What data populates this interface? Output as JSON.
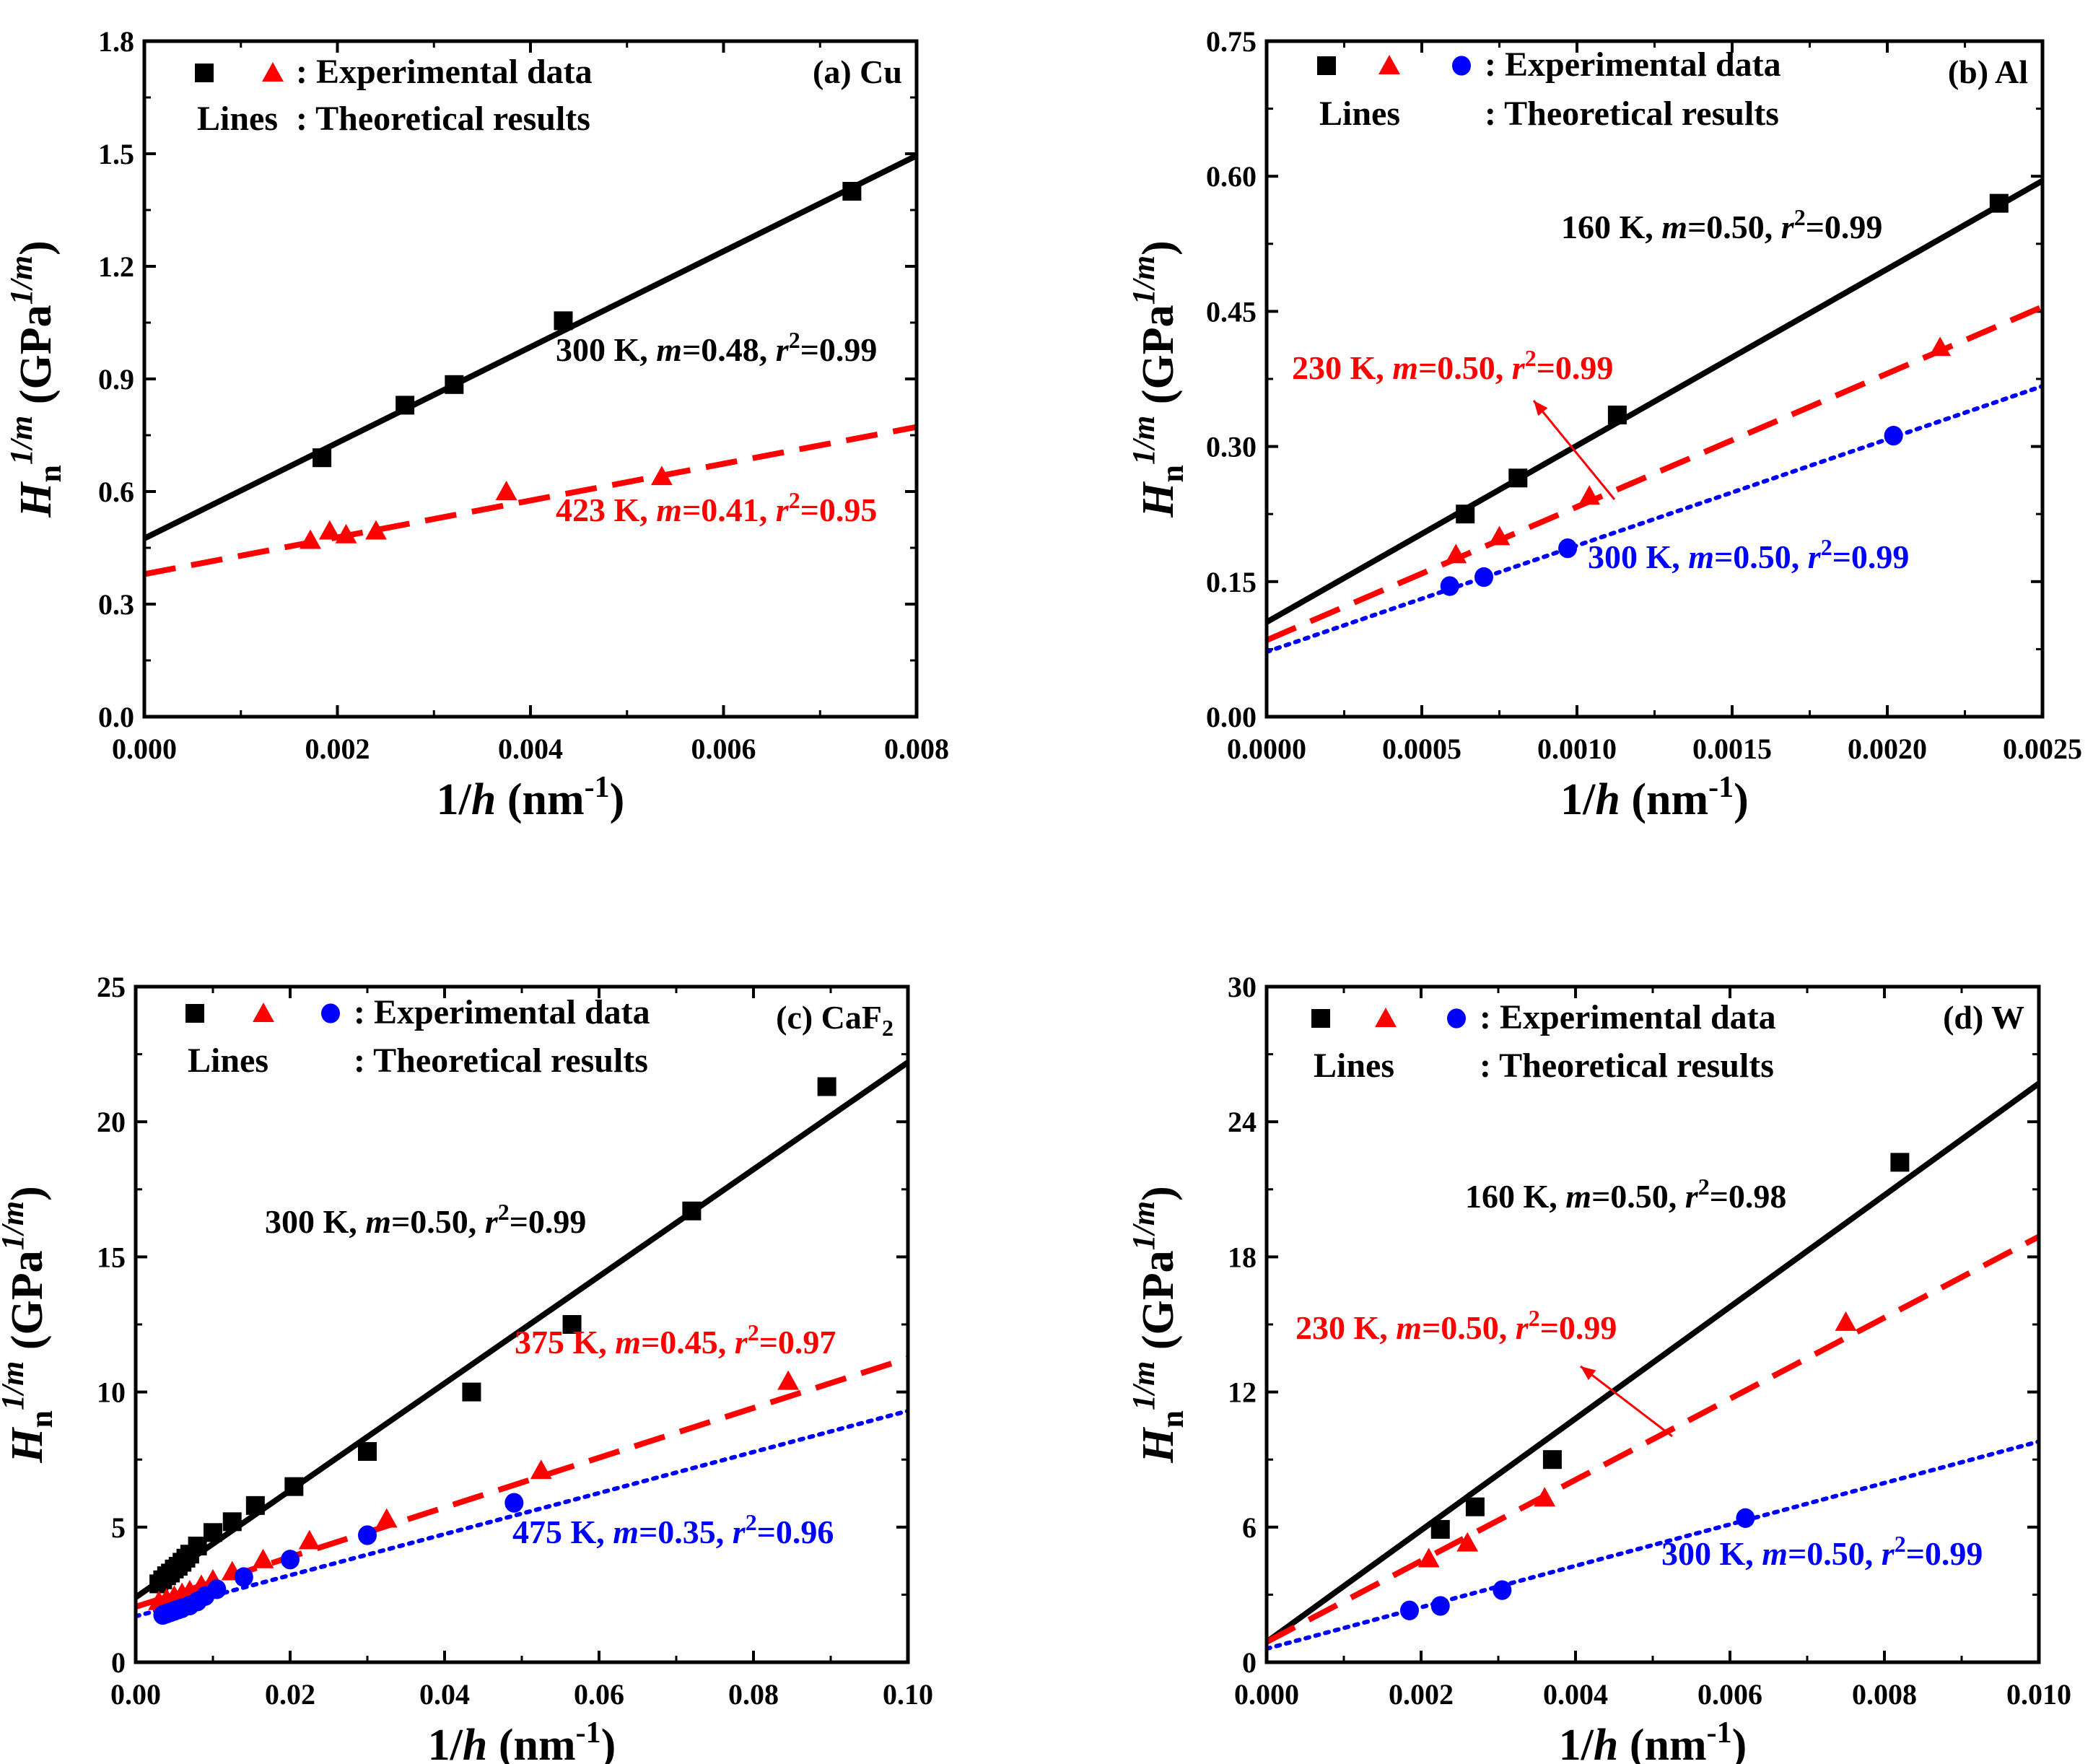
{
  "chart_data": [
    {
      "type": "scatter",
      "panel_label": "(a) Cu",
      "xlabel": "1/h (nm-1)",
      "ylabel": "Hn1/m (GPa1/m)",
      "xlim": [
        0,
        0.008
      ],
      "ylim": [
        0,
        1.8
      ],
      "xticks": [
        "0.000",
        "0.002",
        "0.004",
        "0.006",
        "0.008"
      ],
      "yticks": [
        "0.0",
        "0.3",
        "0.6",
        "0.9",
        "1.2",
        "1.5",
        "1.8"
      ],
      "legend": {
        "markers_label": ": Experimental data",
        "lines_prefix": "Lines",
        "lines_label": ": Theoretical results"
      },
      "series": [
        {
          "name": "300 K",
          "color": "#000000",
          "marker": "square",
          "line": "solid",
          "label": "300 K, m=0.48, r2=0.99",
          "line_intercept": 0.475,
          "line_slope": 127.5,
          "x": [
            0.00184,
            0.0027,
            0.00321,
            0.00434,
            0.00733
          ],
          "y": [
            0.69,
            0.83,
            0.885,
            1.055,
            1.4
          ]
        },
        {
          "name": "423 K",
          "color": "#ff0000",
          "marker": "triangle",
          "line": "dashed",
          "label": "423 K, m=0.41, r2=0.95",
          "line_intercept": 0.38,
          "line_slope": 49,
          "x": [
            0.00172,
            0.00192,
            0.00209,
            0.0024,
            0.00375,
            0.00536
          ],
          "y": [
            0.47,
            0.495,
            0.485,
            0.495,
            0.6,
            0.64
          ]
        }
      ]
    },
    {
      "type": "scatter",
      "panel_label": "(b) Al",
      "xlabel": "1/h (nm-1)",
      "ylabel": "Hn1/m (GPa1/m)",
      "xlim": [
        0,
        0.0025
      ],
      "ylim": [
        0,
        0.75
      ],
      "xticks": [
        "0.0000",
        "0.0005",
        "0.0010",
        "0.0015",
        "0.0020",
        "0.0025"
      ],
      "yticks": [
        "0.00",
        "0.15",
        "0.30",
        "0.45",
        "0.60",
        "0.75"
      ],
      "legend": {
        "markers_label": ": Experimental data",
        "lines_prefix": "Lines",
        "lines_label": ": Theoretical results"
      },
      "series": [
        {
          "name": "160 K",
          "color": "#000000",
          "marker": "square",
          "line": "solid",
          "label": "160 K, m=0.50, r2=0.99",
          "line_intercept": 0.105,
          "line_slope": 196,
          "x": [
            0.00064,
            0.00081,
            0.00113,
            0.00236
          ],
          "y": [
            0.225,
            0.265,
            0.335,
            0.57
          ]
        },
        {
          "name": "230 K",
          "color": "#ff0000",
          "marker": "triangle",
          "line": "dashed",
          "label": "230 K, m=0.50, r2=0.99",
          "line_intercept": 0.085,
          "line_slope": 148,
          "x": [
            0.00061,
            0.00075,
            0.00104,
            0.00217
          ],
          "y": [
            0.18,
            0.2,
            0.245,
            0.41
          ]
        },
        {
          "name": "300 K",
          "color": "#0000ff",
          "marker": "circle",
          "line": "dotted",
          "label": "300 K, m=0.50, r2=0.99",
          "line_intercept": 0.072,
          "line_slope": 118,
          "x": [
            0.00059,
            0.0007,
            0.00097,
            0.00202
          ],
          "y": [
            0.145,
            0.155,
            0.187,
            0.312
          ]
        }
      ]
    },
    {
      "type": "scatter",
      "panel_label": "(c) CaF2",
      "xlabel": "1/h (nm-1)",
      "ylabel": "Hn1/m (GPa1/m)",
      "xlim": [
        0,
        0.1
      ],
      "ylim": [
        0,
        25
      ],
      "xticks": [
        "0.00",
        "0.02",
        "0.04",
        "0.06",
        "0.08",
        "0.10"
      ],
      "yticks": [
        "0",
        "5",
        "10",
        "15",
        "20",
        "25"
      ],
      "legend": {
        "markers_label": ": Experimental data",
        "lines_prefix": "Lines",
        "lines_label": ": Theoretical results"
      },
      "series": [
        {
          "name": "300 K",
          "color": "#000000",
          "marker": "square",
          "line": "solid",
          "label": "300 K, m=0.50, r2=0.99",
          "line_intercept": 2.4,
          "line_slope": 198,
          "x": [
            0.003,
            0.0035,
            0.004,
            0.0045,
            0.005,
            0.0055,
            0.006,
            0.0065,
            0.007,
            0.008,
            0.01,
            0.0125,
            0.0155,
            0.0205,
            0.03,
            0.0435,
            0.0565,
            0.072,
            0.0895
          ],
          "y": [
            2.9,
            3.05,
            3.2,
            3.3,
            3.45,
            3.55,
            3.7,
            3.85,
            4.0,
            4.3,
            4.8,
            5.2,
            5.8,
            6.5,
            7.8,
            10.0,
            12.5,
            16.7,
            21.3
          ]
        },
        {
          "name": "375 K",
          "color": "#ff0000",
          "marker": "triangle",
          "line": "dashed",
          "label": "375 K, m=0.45, r2=0.97",
          "line_intercept": 2.05,
          "line_slope": 92,
          "x": [
            0.003,
            0.004,
            0.005,
            0.006,
            0.007,
            0.0085,
            0.01,
            0.0125,
            0.0165,
            0.0225,
            0.0325,
            0.0525,
            0.0845
          ],
          "y": [
            2.25,
            2.35,
            2.45,
            2.55,
            2.65,
            2.85,
            3.05,
            3.35,
            3.8,
            4.5,
            5.3,
            7.1,
            10.4
          ]
        },
        {
          "name": "475 K",
          "color": "#0000ff",
          "marker": "circle",
          "line": "dotted",
          "label": "475 K, m=0.35, r2=0.96",
          "line_intercept": 1.7,
          "line_slope": 76,
          "x": [
            0.0035,
            0.004,
            0.0045,
            0.005,
            0.0055,
            0.006,
            0.007,
            0.008,
            0.009,
            0.0105,
            0.014,
            0.02,
            0.03,
            0.049
          ],
          "y": [
            1.75,
            1.8,
            1.85,
            1.9,
            1.95,
            2.0,
            2.1,
            2.25,
            2.45,
            2.7,
            3.15,
            3.8,
            4.7,
            5.9
          ]
        }
      ]
    },
    {
      "type": "scatter",
      "panel_label": "(d) W",
      "xlabel": "1/h (nm-1)",
      "ylabel": "Hn1/m (GPa1/m)",
      "xlim": [
        0,
        0.01
      ],
      "ylim": [
        0,
        30
      ],
      "xticks": [
        "0.000",
        "0.002",
        "0.004",
        "0.006",
        "0.008",
        "0.010"
      ],
      "yticks": [
        "0",
        "6",
        "12",
        "18",
        "24",
        "30"
      ],
      "legend": {
        "markers_label": ": Experimental data",
        "lines_prefix": "Lines",
        "lines_label": ": Theoretical results"
      },
      "series": [
        {
          "name": "160 K",
          "color": "#000000",
          "marker": "square",
          "line": "solid",
          "label": "160 K, m=0.50, r2=0.98",
          "line_intercept": 0.9,
          "line_slope": 2480,
          "x": [
            0.00225,
            0.0027,
            0.0037,
            0.0082
          ],
          "y": [
            5.9,
            6.9,
            9.0,
            22.2
          ]
        },
        {
          "name": "230 K",
          "color": "#ff0000",
          "marker": "triangle",
          "line": "dashed",
          "label": "230 K, m=0.50, r2=0.99",
          "line_intercept": 0.9,
          "line_slope": 1800,
          "x": [
            0.0021,
            0.0026,
            0.0036,
            0.0075
          ],
          "y": [
            4.6,
            5.3,
            7.3,
            15.1
          ]
        },
        {
          "name": "300 K",
          "color": "#0000ff",
          "marker": "circle",
          "line": "dotted",
          "label": "300 K, m=0.50, r2=0.99",
          "line_intercept": 0.6,
          "line_slope": 920,
          "x": [
            0.00185,
            0.00225,
            0.00305,
            0.0062
          ],
          "y": [
            2.3,
            2.5,
            3.2,
            6.4
          ]
        }
      ]
    }
  ],
  "colors": {
    "black": "#000000",
    "red": "#ff0000",
    "blue": "#0000ff"
  }
}
